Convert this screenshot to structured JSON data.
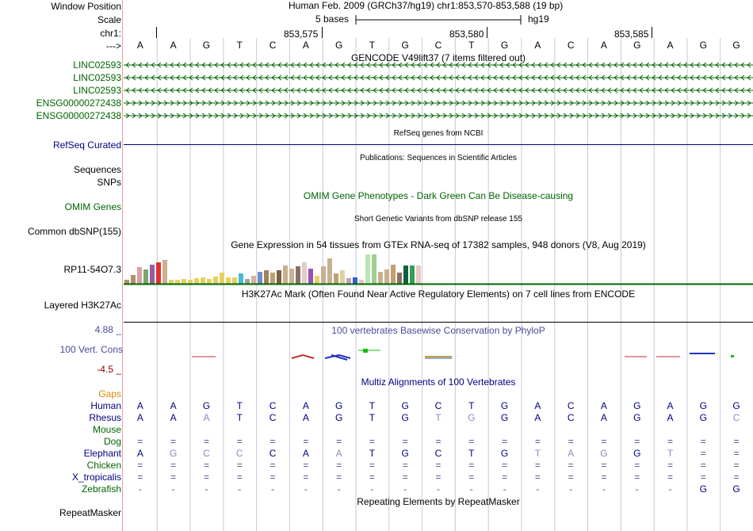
{
  "header": {
    "window_position_label": "Window Position",
    "scale_label": "Scale",
    "chrom_label": "chr1:",
    "strand_label": "--->",
    "title": "Human Feb. 2009 (GRCh37/hg19)    chr1:853,570-853,588 (19 bp)",
    "scale_text": "5 bases",
    "assembly": "hg19",
    "position_ticks": [
      "853,575",
      "853,580",
      "853,585"
    ]
  },
  "colors": {
    "gene_green": "#006400",
    "refseq_navy": "#000080",
    "cons_slate": "#4a4a9a",
    "gaps_orange": "#d98c00",
    "grid": "#c8c8dc",
    "divider": "#e8a0a0"
  },
  "sequence": [
    "A",
    "A",
    "G",
    "T",
    "C",
    "A",
    "G",
    "T",
    "G",
    "C",
    "T",
    "G",
    "A",
    "C",
    "A",
    "G",
    "A",
    "G",
    "G"
  ],
  "gencode": {
    "title": "GENCODE V49lift37 (7 items filtered out)",
    "items": [
      {
        "label": "LINC02593",
        "arrow": "<"
      },
      {
        "label": "LINC02593",
        "arrow": "<"
      },
      {
        "label": "LINC02593",
        "arrow": "<"
      },
      {
        "label": "ENSG00000272438",
        "arrow": ">"
      },
      {
        "label": "ENSG00000272438",
        "arrow": ">"
      }
    ]
  },
  "refseq": {
    "title": "RefSeq genes from NCBI",
    "label": "RefSeq Curated"
  },
  "publications": {
    "title": "Publications: Sequences in Scientific Articles",
    "label1": "Sequences",
    "label2": "SNPs"
  },
  "omim": {
    "title": "OMIM Gene Phenotypes - Dark Green Can Be Disease-causing",
    "label": "OMIM Genes"
  },
  "dbsnp": {
    "title": "Short Genetic Variants from dbSNP release 155",
    "label": "Common dbSNP(155)"
  },
  "gtex": {
    "title": "Gene Expression in 54 tissues from GTEx RNA-seq of 17382 samples, 948 donors (V8, Aug 2019)",
    "label": "RP11-54O7.3",
    "bars": [
      {
        "v": 0.12,
        "c": "#b0906a"
      },
      {
        "v": 0.3,
        "c": "#b0906a"
      },
      {
        "v": 0.55,
        "c": "#d8a0a0"
      },
      {
        "v": 0.48,
        "c": "#7aa66a"
      },
      {
        "v": 0.62,
        "c": "#9a5aa0"
      },
      {
        "v": 0.72,
        "c": "#e03030"
      },
      {
        "v": 0.8,
        "c": "#c8b090"
      },
      {
        "v": 0.14,
        "c": "#e8d060"
      },
      {
        "v": 0.12,
        "c": "#e8d060"
      },
      {
        "v": 0.16,
        "c": "#e8d060"
      },
      {
        "v": 0.14,
        "c": "#e8d060"
      },
      {
        "v": 0.18,
        "c": "#e8d060"
      },
      {
        "v": 0.2,
        "c": "#e8d060"
      },
      {
        "v": 0.16,
        "c": "#e8d060"
      },
      {
        "v": 0.24,
        "c": "#e8d060"
      },
      {
        "v": 0.36,
        "c": "#e8d060"
      },
      {
        "v": 0.2,
        "c": "#e8d060"
      },
      {
        "v": 0.22,
        "c": "#e8d060"
      },
      {
        "v": 0.34,
        "c": "#40c0d0"
      },
      {
        "v": 0.16,
        "c": "#a0a0a0"
      },
      {
        "v": 0.25,
        "c": "#d8b0a0"
      },
      {
        "v": 0.4,
        "c": "#7090c0"
      },
      {
        "v": 0.46,
        "c": "#a08060"
      },
      {
        "v": 0.38,
        "c": "#c0a070"
      },
      {
        "v": 0.46,
        "c": "#806040"
      },
      {
        "v": 0.6,
        "c": "#c8b090"
      },
      {
        "v": 0.5,
        "c": "#c8b090"
      },
      {
        "v": 0.58,
        "c": "#8a7060"
      },
      {
        "v": 0.7,
        "c": "#e8c8c8"
      },
      {
        "v": 0.5,
        "c": "#9a50b0"
      },
      {
        "v": 0.26,
        "c": "#e8d060"
      },
      {
        "v": 0.58,
        "c": "#c8b090"
      },
      {
        "v": 0.84,
        "c": "#c8b090"
      },
      {
        "v": 0.34,
        "c": "#c0a070"
      },
      {
        "v": 0.46,
        "c": "#e0d0a0"
      },
      {
        "v": 0.18,
        "c": "#c0a0c0"
      },
      {
        "v": 0.2,
        "c": "#3060d0"
      },
      {
        "v": 0.14,
        "c": "#f0c0d0"
      },
      {
        "v": 0.98,
        "c": "#b8e8b0"
      },
      {
        "v": 0.98,
        "c": "#a0d090"
      },
      {
        "v": 0.4,
        "c": "#c8b090"
      },
      {
        "v": 0.48,
        "c": "#c8b090"
      },
      {
        "v": 0.62,
        "c": "#c0a070"
      },
      {
        "v": 0.38,
        "c": "#8a7060"
      },
      {
        "v": 0.6,
        "c": "#106040"
      },
      {
        "v": 0.6,
        "c": "#30a050"
      },
      {
        "v": 0.6,
        "c": "#e8c8c8"
      }
    ]
  },
  "h3k27ac": {
    "title": "H3K27Ac Mark (Often Found Near Active Regulatory Elements) on 7 cell lines from ENCODE",
    "label": "Layered H3K27Ac"
  },
  "cons": {
    "title": "100 vertebrates Basewise Conservation by PhyloP",
    "label": "100 Vert. Cons",
    "max_label": "4.88 _",
    "min_label": "-4.5 _"
  },
  "multiz": {
    "title": "Multiz Alignments of 100 Vertebrates",
    "gaps_label": "Gaps",
    "species": [
      {
        "name": "Human",
        "seq": [
          "A",
          "A",
          "G",
          "T",
          "C",
          "A",
          "G",
          "T",
          "G",
          "C",
          "T",
          "G",
          "A",
          "C",
          "A",
          "G",
          "A",
          "G",
          "G"
        ],
        "dim": []
      },
      {
        "name": "Rhesus",
        "seq": [
          "A",
          "A",
          "A",
          "T",
          "C",
          "A",
          "G",
          "T",
          "G",
          "T",
          "G",
          "G",
          "A",
          "C",
          "A",
          "G",
          "A",
          "G",
          "C"
        ],
        "dim": [
          2,
          9,
          10,
          18
        ]
      },
      {
        "name": "Mouse",
        "seq": [],
        "dim": []
      },
      {
        "name": "Dog",
        "seq": [
          "=",
          "=",
          "=",
          "=",
          "=",
          "=",
          "=",
          "=",
          "=",
          "=",
          "=",
          "=",
          "=",
          "=",
          "=",
          "=",
          "=",
          "=",
          "="
        ],
        "dim": []
      },
      {
        "name": "Elephant",
        "seq": [
          "A",
          "G",
          "C",
          "C",
          "C",
          "A",
          "A",
          "T",
          "G",
          "C",
          "T",
          "G",
          "T",
          "A",
          "G",
          "G",
          "T",
          "=",
          "="
        ],
        "dim": [
          1,
          2,
          3,
          6,
          12,
          13,
          14,
          16
        ]
      },
      {
        "name": "Chicken",
        "seq": [
          "=",
          "=",
          "=",
          "=",
          "=",
          "=",
          "=",
          "=",
          "=",
          "=",
          "=",
          "=",
          "=",
          "=",
          "=",
          "=",
          "=",
          "=",
          "="
        ],
        "dim": []
      },
      {
        "name": "X_tropicalis",
        "seq": [
          "=",
          "=",
          "=",
          "=",
          "=",
          "=",
          "=",
          "=",
          "=",
          "=",
          "=",
          "=",
          "=",
          "=",
          "=",
          "=",
          "=",
          "=",
          "="
        ],
        "dim": []
      },
      {
        "name": "Zebrafish",
        "seq": [
          "-",
          "-",
          "-",
          "-",
          "-",
          "-",
          "-",
          "-",
          "-",
          "-",
          "-",
          "-",
          "-",
          "-",
          "-",
          "-",
          "-",
          "G",
          "G"
        ],
        "dim": []
      }
    ]
  },
  "repeatmasker": {
    "title": "Repeating Elements by RepeatMasker",
    "label": "RepeatMasker"
  }
}
